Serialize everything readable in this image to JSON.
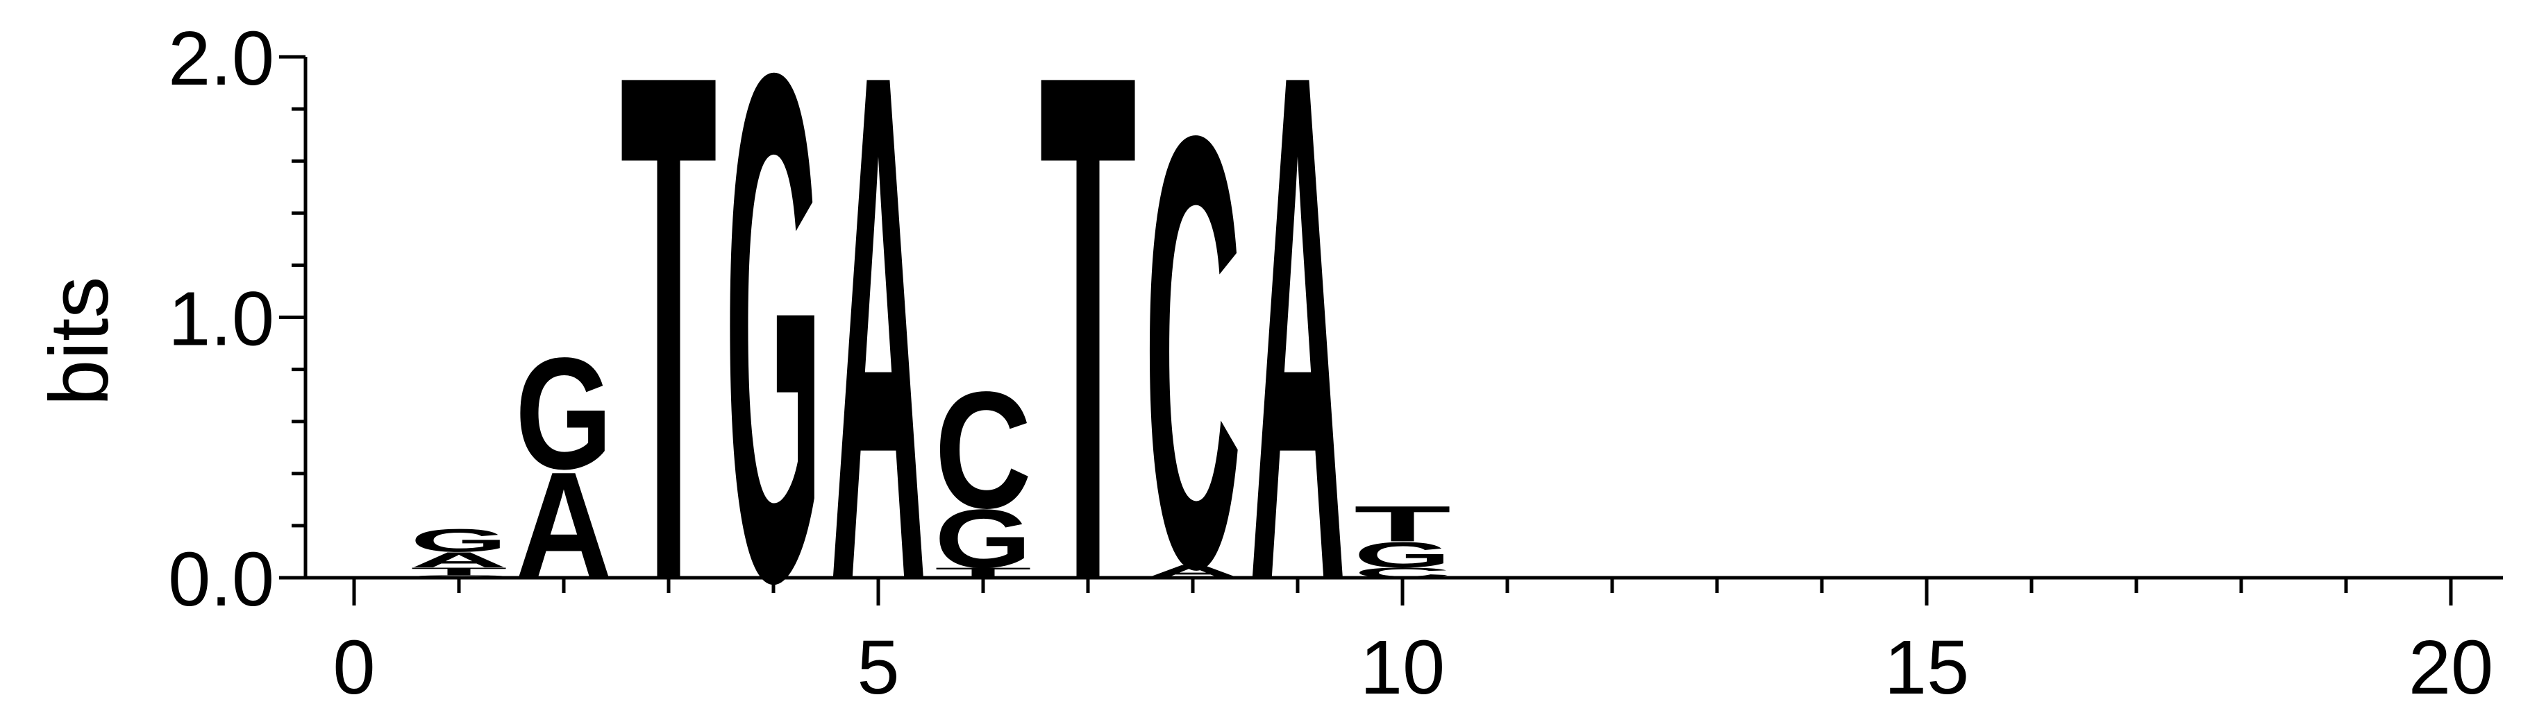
{
  "chart_data": {
    "type": "sequence-logo",
    "ylabel": "bits",
    "ylim": [
      0,
      2
    ],
    "yticks": [
      "0.0",
      "1.0",
      "2.0"
    ],
    "y_minor_step": 0.2,
    "xlim": [
      -0.5,
      20.5
    ],
    "xticks": [
      "0",
      "5",
      "10",
      "15",
      "20"
    ],
    "colors": {
      "A": "#008000",
      "C": "#0000ff",
      "G": "#ffa500",
      "T": "#ff0000"
    },
    "positions": [
      {
        "pos": 1,
        "letters": [
          {
            "base": "C",
            "bits": 0.01
          },
          {
            "base": "T",
            "bits": 0.03
          },
          {
            "base": "A",
            "bits": 0.06
          },
          {
            "base": "G",
            "bits": 0.09
          }
        ]
      },
      {
        "pos": 2,
        "letters": [
          {
            "base": "A",
            "bits": 0.42
          },
          {
            "base": "G",
            "bits": 0.44
          }
        ]
      },
      {
        "pos": 3,
        "letters": [
          {
            "base": "T",
            "bits": 2.0
          }
        ]
      },
      {
        "pos": 4,
        "letters": [
          {
            "base": "G",
            "bits": 2.0
          }
        ]
      },
      {
        "pos": 5,
        "letters": [
          {
            "base": "A",
            "bits": 2.0
          }
        ]
      },
      {
        "pos": 6,
        "letters": [
          {
            "base": "T",
            "bits": 0.04
          },
          {
            "base": "G",
            "bits": 0.23
          },
          {
            "base": "C",
            "bits": 0.46
          }
        ]
      },
      {
        "pos": 7,
        "letters": [
          {
            "base": "T",
            "bits": 2.0
          }
        ]
      },
      {
        "pos": 8,
        "letters": [
          {
            "base": "A",
            "bits": 0.05
          },
          {
            "base": "C",
            "bits": 1.7
          }
        ]
      },
      {
        "pos": 9,
        "letters": [
          {
            "base": "A",
            "bits": 2.0
          }
        ]
      },
      {
        "pos": 10,
        "letters": [
          {
            "base": "C",
            "bits": 0.04
          },
          {
            "base": "G",
            "bits": 0.1
          },
          {
            "base": "T",
            "bits": 0.14
          }
        ]
      }
    ]
  }
}
